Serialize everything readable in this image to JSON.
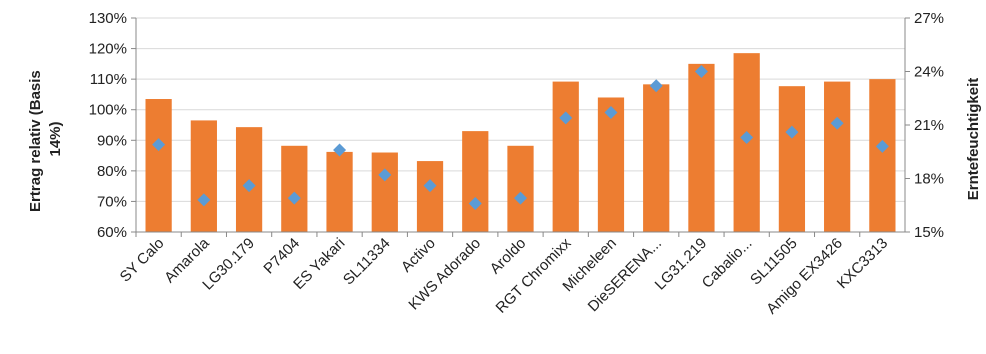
{
  "chart_data": {
    "type": "bar",
    "categories": [
      "SY Calo",
      "Amarola",
      "LG30.179",
      "P7404",
      "ES Yakari",
      "SL11334",
      "Activo",
      "KWS Adorado",
      "Aroldo",
      "RGT Chromixx",
      "Micheleen",
      "DieSERENA...",
      "LG31.219",
      "Cabalio...",
      "SL11505",
      "Amigo EX3426",
      "KXC3313"
    ],
    "series": [
      {
        "type": "bar",
        "axis": "left",
        "color": "#ED7D31",
        "values": [
          103.5,
          96.5,
          94.3,
          88.2,
          86.2,
          86.0,
          83.2,
          93.0,
          88.2,
          109.2,
          104.0,
          108.3,
          115.0,
          118.5,
          107.7,
          109.2,
          110.0
        ]
      },
      {
        "type": "scatter",
        "marker": "diamond",
        "axis": "right",
        "color": "#5B9BD5",
        "values": [
          19.9,
          16.8,
          17.6,
          16.9,
          19.6,
          18.2,
          17.6,
          16.6,
          16.9,
          21.4,
          21.7,
          23.2,
          24.0,
          20.3,
          20.6,
          21.1,
          19.8
        ]
      }
    ],
    "ylabel": "Ertrag relativ (Basis 14%)",
    "ylabel_lines": [
      "Ertrag relativ (Basis",
      "14%)"
    ],
    "y2label": "Erntefeuchtigkeit",
    "ylim": [
      60,
      130
    ],
    "y2lim": [
      15,
      27
    ],
    "yticks": [
      "60%",
      "70%",
      "80%",
      "90%",
      "100%",
      "110%",
      "120%",
      "130%"
    ],
    "y2ticks": [
      "15%",
      "18%",
      "21%",
      "24%",
      "27%"
    ],
    "grid": true,
    "grid_color": "#D9D9D9",
    "legend": "none"
  }
}
